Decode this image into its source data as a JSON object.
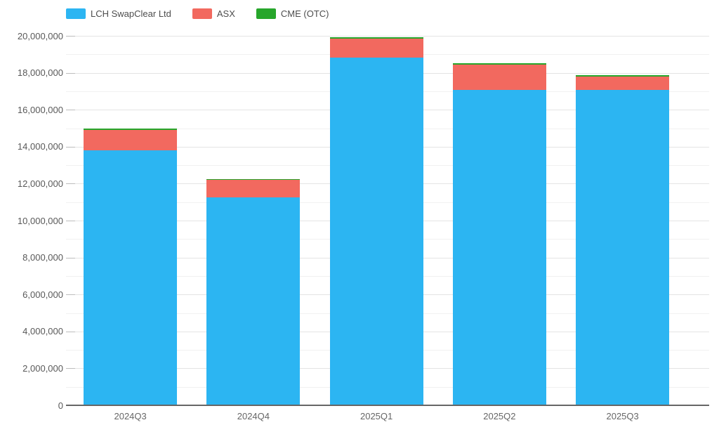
{
  "chart_data": {
    "type": "bar",
    "stacked": true,
    "title": "",
    "xlabel": "",
    "ylabel": "",
    "grid": true,
    "legend_position": "top",
    "categories": [
      "2024Q3",
      "2024Q4",
      "2025Q1",
      "2025Q2",
      "2025Q3"
    ],
    "series": [
      {
        "name": "LCH SwapClear Ltd",
        "color": "#2cb5f2",
        "values": [
          13750000,
          11200000,
          18800000,
          17050000,
          17050000
        ]
      },
      {
        "name": "ASX",
        "color": "#f2695f",
        "values": [
          1100000,
          960000,
          1000000,
          1350000,
          720000
        ]
      },
      {
        "name": "CME (OTC)",
        "color": "#27a62b",
        "values": [
          80000,
          60000,
          80000,
          80000,
          80000
        ]
      }
    ],
    "ylim": [
      0,
      20000000
    ],
    "y_major_step": 2000000,
    "y_minor_step": 1000000,
    "y_tick_labels": [
      "0",
      "2,000,000",
      "4,000,000",
      "6,000,000",
      "8,000,000",
      "10,000,000",
      "12,000,000",
      "14,000,000",
      "16,000,000",
      "18,000,000",
      "20,000,000"
    ]
  }
}
